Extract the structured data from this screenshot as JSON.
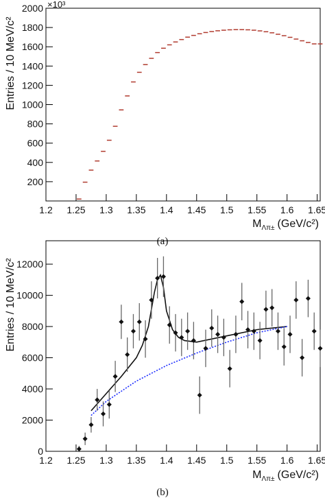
{
  "chart_data": [
    {
      "type": "histogram",
      "ylabel": "Entries / 10 MeV/c²",
      "multiplier": "×10³",
      "xlabel": {
        "main": "M",
        "sub": "Λπ±",
        "unit": "(GeV/c²)"
      },
      "caption": "(a)",
      "color": "#b03a2e",
      "bins": [
        1.25,
        1.26,
        1.27,
        1.28,
        1.29,
        1.3,
        1.31,
        1.32,
        1.33,
        1.34,
        1.35,
        1.36,
        1.37,
        1.38,
        1.39,
        1.4,
        1.41,
        1.42,
        1.43,
        1.44,
        1.45,
        1.46,
        1.47,
        1.48,
        1.49,
        1.5,
        1.51,
        1.52,
        1.53,
        1.54,
        1.55,
        1.56,
        1.57,
        1.58,
        1.59,
        1.6,
        1.61,
        1.62,
        1.63,
        1.64,
        1.65,
        1.66
      ],
      "values": [
        20,
        195,
        320,
        415,
        515,
        630,
        775,
        945,
        1090,
        1235,
        1335,
        1415,
        1480,
        1540,
        1585,
        1620,
        1650,
        1675,
        1700,
        1718,
        1735,
        1748,
        1758,
        1766,
        1772,
        1776,
        1778,
        1778,
        1776,
        1772,
        1765,
        1756,
        1745,
        1730,
        1715,
        1698,
        1680,
        1662,
        1645,
        1630,
        1630
      ],
      "xlim": [
        1.2,
        1.655
      ],
      "ylim": [
        0,
        2000
      ],
      "xticks": [
        1.2,
        1.25,
        1.3,
        1.35,
        1.4,
        1.45,
        1.5,
        1.55,
        1.6,
        1.65
      ],
      "yticks": [
        200,
        400,
        600,
        800,
        1000,
        1200,
        1400,
        1600,
        1800,
        2000
      ]
    },
    {
      "type": "errorbar",
      "ylabel": "Entries / 10 MeV/c²",
      "xlabel": {
        "main": "M",
        "sub": "Λπ±",
        "unit": "(GeV/c²)"
      },
      "caption": "(b)",
      "color": "#111111",
      "x": [
        1.255,
        1.265,
        1.275,
        1.285,
        1.295,
        1.305,
        1.315,
        1.325,
        1.335,
        1.345,
        1.355,
        1.365,
        1.375,
        1.385,
        1.395,
        1.405,
        1.415,
        1.425,
        1.435,
        1.445,
        1.455,
        1.465,
        1.475,
        1.485,
        1.495,
        1.505,
        1.515,
        1.525,
        1.535,
        1.545,
        1.555,
        1.565,
        1.575,
        1.585,
        1.595,
        1.605,
        1.615,
        1.625,
        1.635,
        1.645,
        1.655
      ],
      "values": [
        150,
        800,
        1700,
        3300,
        2400,
        3000,
        4800,
        8300,
        6200,
        7700,
        8300,
        7200,
        9700,
        11100,
        11200,
        8100,
        7600,
        7300,
        7700,
        7100,
        3600,
        6600,
        7900,
        7500,
        7300,
        5300,
        7500,
        9600,
        7800,
        7700,
        7100,
        9100,
        9200,
        7700,
        6700,
        7500,
        9700,
        6000,
        9800,
        7700,
        6600
      ],
      "errors": [
        200,
        400,
        500,
        700,
        800,
        900,
        1000,
        1100,
        1100,
        1100,
        1200,
        1200,
        1200,
        1300,
        1300,
        1200,
        1200,
        1200,
        1200,
        1200,
        1200,
        1200,
        1200,
        1200,
        1200,
        1200,
        1200,
        1200,
        1200,
        1200,
        1200,
        1200,
        1200,
        1200,
        1200,
        1200,
        1200,
        1200,
        1200,
        1200,
        1200
      ],
      "lines": [
        {
          "color": "#111111",
          "style": "solid",
          "x": [
            1.275,
            1.3,
            1.325,
            1.35,
            1.36,
            1.37,
            1.38,
            1.385,
            1.39,
            1.395,
            1.4,
            1.41,
            1.42,
            1.43,
            1.45,
            1.5,
            1.55,
            1.6
          ],
          "values": [
            2600,
            3700,
            4800,
            6000,
            6800,
            8000,
            10200,
            11000,
            11300,
            10500,
            9000,
            7800,
            7300,
            7100,
            7000,
            7400,
            7800,
            8000
          ]
        },
        {
          "color": "#1a2bff",
          "style": "dotted",
          "x": [
            1.275,
            1.3,
            1.35,
            1.4,
            1.45,
            1.5,
            1.55,
            1.6
          ],
          "values": [
            2300,
            3200,
            4500,
            5500,
            6300,
            7000,
            7600,
            8000
          ]
        }
      ],
      "xlim": [
        1.2,
        1.655
      ],
      "ylim": [
        0,
        13500
      ],
      "xticks": [
        1.2,
        1.25,
        1.3,
        1.35,
        1.4,
        1.45,
        1.5,
        1.55,
        1.6,
        1.65
      ],
      "yticks": [
        0,
        2000,
        4000,
        6000,
        8000,
        10000,
        12000
      ]
    }
  ]
}
